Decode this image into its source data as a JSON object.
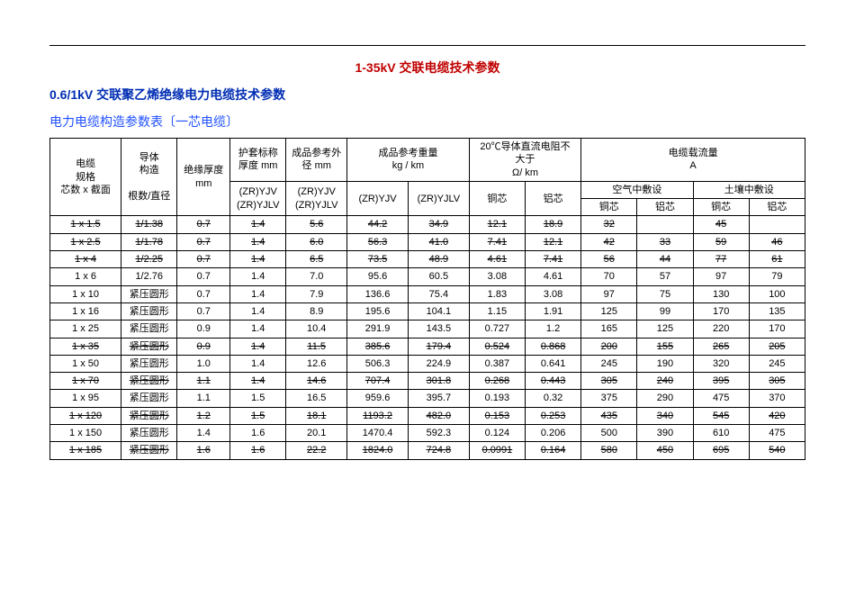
{
  "titles": {
    "main": "1-35kV 交联电缆技术参数",
    "sub": "0.6/1kV 交联聚乙烯绝缘电力电缆技术参数",
    "section": "电力电缆构造参数表〔一芯电缆〕"
  },
  "styling": {
    "title_main_color": "#c00000",
    "title_sub_color": "#002db3",
    "section_color": "#2050ff",
    "font_body": "SimSun",
    "fontsize_title": 14,
    "fontsize_body": 11,
    "border_color": "#000000",
    "background_color": "#ffffff"
  },
  "headers": {
    "spec": "电缆\n规格\n芯数 x 截面",
    "cons": "导体\n构造\n\n根数/直径",
    "ins": "绝缘厚度\nmm",
    "sheath": "护套标称\n厚度 mm",
    "diam": "成品参考外\n径 mm",
    "weight": "成品参考重量\nkg / km",
    "resist": "20℃导体直流电阻不\n大于\nΩ/ km",
    "ampac": "电缆载流量\nA",
    "air": "空气中敷设",
    "soil": "土壤中敷设",
    "model1": "(ZR)YJV\n(ZR)YJLV",
    "model2": "(ZR)YJV\n(ZR)YJLV",
    "w_yjv": "(ZR)YJV",
    "w_yjlv": "(ZR)YJLV",
    "cu": "铜芯",
    "al": "铝芯"
  },
  "spec_table": {
    "type": "table",
    "strike_rows": [
      0,
      1,
      2,
      7,
      9,
      11,
      13
    ],
    "columns": [
      "spec",
      "cons",
      "ins",
      "sheath",
      "diam",
      "w_yjv",
      "w_yjlv",
      "r_cu",
      "r_al",
      "air_cu",
      "air_al",
      "soil_cu",
      "soil_al"
    ],
    "rows": [
      [
        "1 x 1.5",
        "1/1.38",
        "0.7",
        "1.4",
        "5.6",
        "44.2",
        "34.9",
        "12.1",
        "18.9",
        "32",
        "",
        "45",
        ""
      ],
      [
        "1 x 2.5",
        "1/1.78",
        "0.7",
        "1.4",
        "6.0",
        "56.3",
        "41.0",
        "7.41",
        "12.1",
        "42",
        "33",
        "59",
        "46"
      ],
      [
        "1 x 4",
        "1/2.25",
        "0.7",
        "1.4",
        "6.5",
        "73.5",
        "48.9",
        "4.61",
        "7.41",
        "56",
        "44",
        "77",
        "61"
      ],
      [
        "1 x 6",
        "1/2.76",
        "0.7",
        "1.4",
        "7.0",
        "95.6",
        "60.5",
        "3.08",
        "4.61",
        "70",
        "57",
        "97",
        "79"
      ],
      [
        "1 x 10",
        "紧压圆形",
        "0.7",
        "1.4",
        "7.9",
        "136.6",
        "75.4",
        "1.83",
        "3.08",
        "97",
        "75",
        "130",
        "100"
      ],
      [
        "1 x 16",
        "紧压圆形",
        "0.7",
        "1.4",
        "8.9",
        "195.6",
        "104.1",
        "1.15",
        "1.91",
        "125",
        "99",
        "170",
        "135"
      ],
      [
        "1 x 25",
        "紧压圆形",
        "0.9",
        "1.4",
        "10.4",
        "291.9",
        "143.5",
        "0.727",
        "1.2",
        "165",
        "125",
        "220",
        "170"
      ],
      [
        "1 x 35",
        "紧压圆形",
        "0.9",
        "1.4",
        "11.5",
        "385.6",
        "179.4",
        "0.524",
        "0.868",
        "200",
        "155",
        "265",
        "205"
      ],
      [
        "1 x 50",
        "紧压圆形",
        "1.0",
        "1.4",
        "12.6",
        "506.3",
        "224.9",
        "0.387",
        "0.641",
        "245",
        "190",
        "320",
        "245"
      ],
      [
        "1 x 70",
        "紧压圆形",
        "1.1",
        "1.4",
        "14.6",
        "707.4",
        "301.8",
        "0.268",
        "0.443",
        "305",
        "240",
        "395",
        "305"
      ],
      [
        "1 x 95",
        "紧压圆形",
        "1.1",
        "1.5",
        "16.5",
        "959.6",
        "395.7",
        "0.193",
        "0.32",
        "375",
        "290",
        "475",
        "370"
      ],
      [
        "1 x 120",
        "紧压圆形",
        "1.2",
        "1.5",
        "18.1",
        "1193.2",
        "482.0",
        "0.153",
        "0.253",
        "435",
        "340",
        "545",
        "420"
      ],
      [
        "1 x 150",
        "紧压圆形",
        "1.4",
        "1.6",
        "20.1",
        "1470.4",
        "592.3",
        "0.124",
        "0.206",
        "500",
        "390",
        "610",
        "475"
      ],
      [
        "1 x 185",
        "紧压圆形",
        "1.6",
        "1.6",
        "22.2",
        "1824.0",
        "724.8",
        "0.0991",
        "0.164",
        "580",
        "450",
        "695",
        "540"
      ]
    ]
  }
}
